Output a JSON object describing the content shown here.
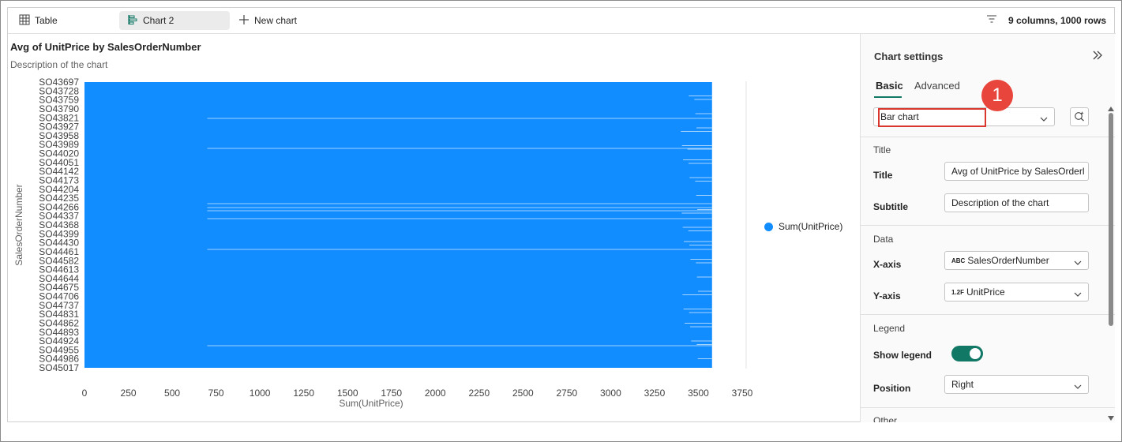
{
  "tabs": {
    "table_label": "Table",
    "chart_label": "Chart 2",
    "new_chart_label": "New chart",
    "rows_info": "9 columns, 1000 rows"
  },
  "chart": {
    "title": "Avg of UnitPrice by SalesOrderNumber",
    "subtitle": "Description of the chart",
    "legend_label": "Sum(UnitPrice)",
    "bar_color": "#118dff"
  },
  "chart_data": {
    "type": "bar",
    "orientation": "horizontal",
    "title": "Avg of UnitPrice by SalesOrderNumber",
    "subtitle": "Description of the chart",
    "xlabel": "Sum(UnitPrice)",
    "ylabel": "SalesOrderNumber",
    "xlim": [
      0,
      3750
    ],
    "x_ticks": [
      "0",
      "250",
      "500",
      "750",
      "1000",
      "1250",
      "1500",
      "1750",
      "2000",
      "2250",
      "2500",
      "2750",
      "3000",
      "3250",
      "3500",
      "3750"
    ],
    "categories": [
      "SO43697",
      "SO43728",
      "SO43759",
      "SO43790",
      "SO43821",
      "SO43927",
      "SO43958",
      "SO43989",
      "SO44020",
      "SO44051",
      "SO44142",
      "SO44173",
      "SO44204",
      "SO44235",
      "SO44266",
      "SO44337",
      "SO44368",
      "SO44399",
      "SO44430",
      "SO44461",
      "SO44582",
      "SO44613",
      "SO44644",
      "SO44675",
      "SO44706",
      "SO44737",
      "SO44831",
      "SO44862",
      "SO44893",
      "SO44924",
      "SO44955",
      "SO44986",
      "SO45017"
    ],
    "series": [
      {
        "name": "Sum(UnitPrice)",
        "approx_max_value": 3578
      }
    ],
    "legend": "right",
    "grid": false
  },
  "settings": {
    "title": "Chart settings",
    "tab_basic": "Basic",
    "tab_advanced": "Advanced",
    "badge": "1",
    "chart_type": "Bar chart",
    "section_title": "Title",
    "title_label": "Title",
    "title_value": "Avg of UnitPrice by SalesOrderl",
    "subtitle_label": "Subtitle",
    "subtitle_value": "Description of the chart",
    "section_data": "Data",
    "xaxis_label": "X-axis",
    "xaxis_type": "ABC",
    "xaxis_value": "SalesOrderNumber",
    "yaxis_label": "Y-axis",
    "yaxis_type": "1.2F",
    "yaxis_value": "UnitPrice",
    "section_legend": "Legend",
    "show_legend_label": "Show legend",
    "show_legend": true,
    "position_label": "Position",
    "position_value": "Right",
    "section_other": "Other"
  }
}
